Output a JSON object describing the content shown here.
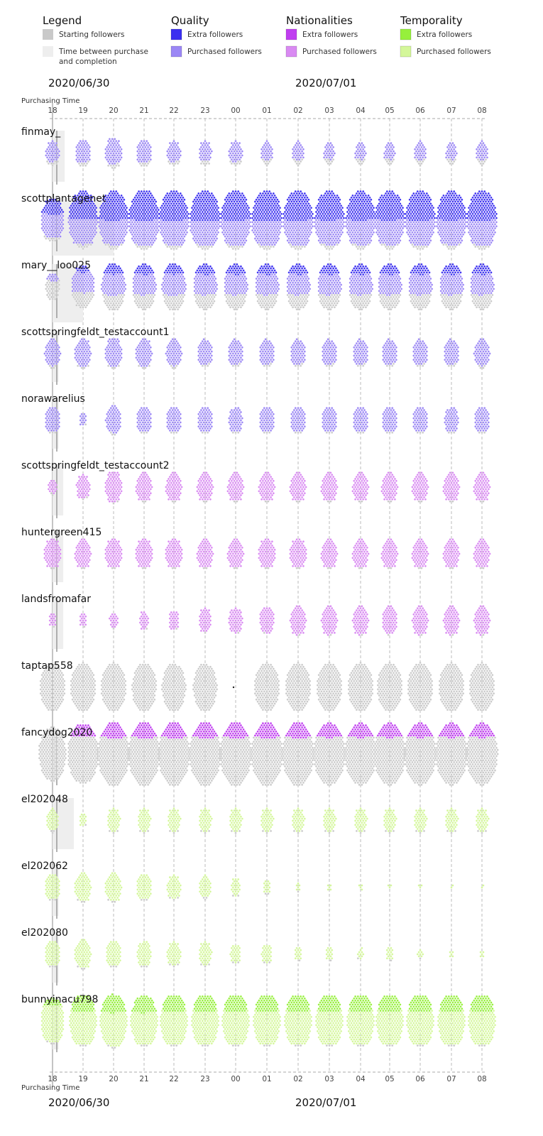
{
  "chart_data": {
    "type": "scatter",
    "subtype": "beeswarm",
    "axis_label": "Purchasing Time",
    "dates": [
      "2020/06/30",
      "2020/07/01"
    ],
    "ticks": [
      "18",
      "19",
      "20",
      "21",
      "22",
      "23",
      "00",
      "01",
      "02",
      "03",
      "04",
      "05",
      "06",
      "07",
      "08"
    ],
    "legend": {
      "groups": [
        {
          "title": "Legend",
          "items": [
            {
              "label": "Starting followers",
              "color": "#c9c9c9"
            },
            {
              "label": "Time between purchase and completion",
              "color": "#eeeeee"
            }
          ]
        },
        {
          "title": "Quality",
          "items": [
            {
              "label": "Extra followers",
              "color": "#3b2ff0"
            },
            {
              "label": "Purchased followers",
              "color": "#9b87f5"
            }
          ]
        },
        {
          "title": "Nationalities",
          "items": [
            {
              "label": "Extra followers",
              "color": "#c03ef0"
            },
            {
              "label": "Purchased followers",
              "color": "#d98af2"
            }
          ]
        },
        {
          "title": "Temporality",
          "items": [
            {
              "label": "Extra followers",
              "color": "#96f03c"
            },
            {
              "label": "Purchased followers",
              "color": "#d4f79a"
            }
          ]
        }
      ]
    },
    "rows": [
      {
        "account": "finmay_",
        "group": 1,
        "completion_hours": 0.4,
        "starting": [
          8,
          8,
          8,
          8,
          8,
          8,
          8,
          8,
          8,
          8,
          8,
          8,
          8,
          8,
          8
        ],
        "purchased": [
          45,
          55,
          70,
          55,
          45,
          40,
          45,
          35,
          35,
          30,
          30,
          30,
          35,
          30,
          35
        ],
        "extra": [
          0,
          0,
          0,
          0,
          0,
          0,
          0,
          0,
          0,
          0,
          0,
          0,
          0,
          0,
          0
        ]
      },
      {
        "account": "scottplantagenet",
        "group": 1,
        "completion_hours": 2.0,
        "starting": [
          10,
          10,
          10,
          10,
          10,
          10,
          10,
          10,
          10,
          10,
          10,
          10,
          10,
          10,
          10
        ],
        "purchased": [
          90,
          120,
          120,
          125,
          120,
          120,
          120,
          120,
          120,
          120,
          120,
          120,
          120,
          120,
          120
        ],
        "extra": [
          50,
          120,
          130,
          140,
          135,
          140,
          135,
          140,
          135,
          130,
          130,
          130,
          135,
          130,
          135
        ]
      },
      {
        "account": "mary__loo025",
        "group": 1,
        "completion_hours": 1.0,
        "starting": [
          45,
          50,
          50,
          50,
          50,
          50,
          50,
          50,
          50,
          50,
          50,
          50,
          50,
          50,
          50
        ],
        "purchased": [
          15,
          80,
          90,
          85,
          90,
          85,
          85,
          85,
          85,
          85,
          85,
          85,
          85,
          85,
          85
        ],
        "extra": [
          0,
          15,
          30,
          30,
          30,
          30,
          30,
          30,
          30,
          30,
          30,
          30,
          30,
          30,
          30
        ]
      },
      {
        "account": "scottspringfeldt_testaccount1",
        "group": 1,
        "completion_hours": 0.2,
        "starting": [
          4,
          4,
          4,
          4,
          4,
          4,
          4,
          4,
          4,
          4,
          4,
          4,
          4,
          4,
          4
        ],
        "purchased": [
          65,
          70,
          75,
          70,
          65,
          60,
          60,
          60,
          60,
          60,
          60,
          60,
          60,
          60,
          65
        ],
        "extra": [
          0,
          0,
          0,
          0,
          0,
          0,
          0,
          0,
          0,
          0,
          0,
          0,
          0,
          0,
          0
        ]
      },
      {
        "account": "norawarelius",
        "group": 1,
        "completion_hours": 0.2,
        "starting": [
          3,
          1,
          3,
          3,
          3,
          3,
          3,
          3,
          3,
          3,
          3,
          3,
          3,
          3,
          3
        ],
        "purchased": [
          60,
          14,
          65,
          60,
          60,
          60,
          55,
          60,
          60,
          60,
          60,
          60,
          60,
          55,
          60
        ],
        "extra": [
          0,
          0,
          0,
          0,
          0,
          0,
          0,
          0,
          0,
          0,
          0,
          0,
          0,
          0,
          0
        ]
      },
      {
        "account": "scottspringfeldt_testaccount2",
        "group": 2,
        "completion_hours": 0.35,
        "starting": [
          2,
          2,
          2,
          2,
          2,
          2,
          2,
          2,
          2,
          2,
          2,
          2,
          2,
          2,
          2
        ],
        "purchased": [
          20,
          50,
          80,
          70,
          70,
          70,
          70,
          70,
          70,
          70,
          70,
          70,
          70,
          70,
          70
        ],
        "extra": [
          0,
          0,
          0,
          0,
          0,
          0,
          0,
          0,
          0,
          0,
          0,
          0,
          0,
          0,
          0
        ]
      },
      {
        "account": "huntergreen415",
        "group": 2,
        "completion_hours": 0.35,
        "starting": [
          2,
          2,
          2,
          2,
          2,
          2,
          2,
          2,
          2,
          2,
          2,
          2,
          2,
          2,
          2
        ],
        "purchased": [
          75,
          70,
          75,
          75,
          75,
          70,
          70,
          75,
          75,
          70,
          70,
          70,
          70,
          70,
          70
        ],
        "extra": [
          0,
          0,
          0,
          0,
          0,
          0,
          0,
          0,
          0,
          0,
          0,
          0,
          0,
          0,
          0
        ]
      },
      {
        "account": "landsfromafar",
        "group": 2,
        "completion_hours": 0.35,
        "starting": [
          1,
          1,
          1,
          1,
          1,
          1,
          1,
          1,
          1,
          1,
          1,
          1,
          1,
          1,
          1
        ],
        "purchased": [
          15,
          15,
          20,
          25,
          30,
          45,
          55,
          60,
          70,
          70,
          70,
          65,
          70,
          70,
          70
        ],
        "extra": [
          0,
          0,
          0,
          0,
          0,
          0,
          0,
          0,
          0,
          0,
          0,
          0,
          0,
          0,
          0
        ]
      },
      {
        "account": "taptap558",
        "group": 2,
        "completion_hours": 0,
        "starting": [
          180,
          180,
          180,
          175,
          170,
          170,
          1,
          180,
          180,
          180,
          180,
          180,
          180,
          180,
          180
        ],
        "purchased": [
          0,
          0,
          0,
          0,
          0,
          0,
          0,
          0,
          0,
          0,
          0,
          0,
          0,
          0,
          0
        ],
        "extra": [
          0,
          0,
          0,
          0,
          0,
          0,
          0,
          0,
          0,
          0,
          0,
          0,
          0,
          0,
          0
        ]
      },
      {
        "account": "fancydog2020",
        "group": 2,
        "completion_hours": 0.1,
        "starting": [
          220,
          230,
          240,
          240,
          240,
          240,
          240,
          240,
          240,
          240,
          240,
          240,
          240,
          240,
          240
        ],
        "purchased": [
          0,
          0,
          0,
          0,
          0,
          0,
          0,
          0,
          0,
          0,
          0,
          0,
          0,
          0,
          0
        ],
        "extra": [
          0,
          45,
          55,
          55,
          55,
          55,
          55,
          55,
          55,
          50,
          50,
          50,
          50,
          50,
          50
        ]
      },
      {
        "account": "el202048",
        "group": 3,
        "completion_hours": 0.7,
        "starting": [
          3,
          1,
          3,
          3,
          3,
          3,
          3,
          3,
          3,
          3,
          3,
          3,
          3,
          3,
          3
        ],
        "purchased": [
          40,
          14,
          45,
          45,
          45,
          45,
          45,
          45,
          45,
          45,
          45,
          45,
          45,
          45,
          45
        ],
        "extra": [
          0,
          0,
          0,
          0,
          0,
          0,
          0,
          0,
          0,
          0,
          0,
          0,
          0,
          0,
          0
        ]
      },
      {
        "account": "el202062",
        "group": 3,
        "completion_hours": 0.2,
        "starting": [
          3,
          3,
          3,
          3,
          3,
          3,
          2,
          2,
          1,
          0,
          0,
          0,
          0,
          0,
          0
        ],
        "purchased": [
          60,
          70,
          70,
          60,
          50,
          40,
          25,
          15,
          6,
          5,
          4,
          3,
          3,
          2,
          2
        ],
        "extra": [
          0,
          0,
          0,
          0,
          0,
          0,
          0,
          0,
          0,
          0,
          0,
          0,
          0,
          0,
          0
        ]
      },
      {
        "account": "el202080",
        "group": 3,
        "completion_hours": 0.2,
        "starting": [
          3,
          3,
          3,
          3,
          3,
          3,
          2,
          2,
          1,
          1,
          1,
          1,
          1,
          0,
          0
        ],
        "purchased": [
          60,
          70,
          60,
          55,
          50,
          45,
          30,
          30,
          15,
          15,
          10,
          15,
          8,
          5,
          5
        ],
        "extra": [
          0,
          0,
          0,
          0,
          0,
          0,
          0,
          0,
          0,
          0,
          0,
          0,
          0,
          0,
          0
        ]
      },
      {
        "account": "bunnyinacu798",
        "group": 3,
        "completion_hours": 0.2,
        "starting": [
          3,
          3,
          3,
          3,
          3,
          3,
          3,
          3,
          3,
          3,
          3,
          3,
          3,
          3,
          3
        ],
        "purchased": [
          140,
          150,
          150,
          145,
          150,
          150,
          150,
          150,
          150,
          150,
          150,
          150,
          150,
          150,
          150
        ],
        "extra": [
          20,
          60,
          65,
          60,
          60,
          60,
          60,
          60,
          60,
          60,
          60,
          60,
          60,
          60,
          60
        ]
      }
    ]
  }
}
